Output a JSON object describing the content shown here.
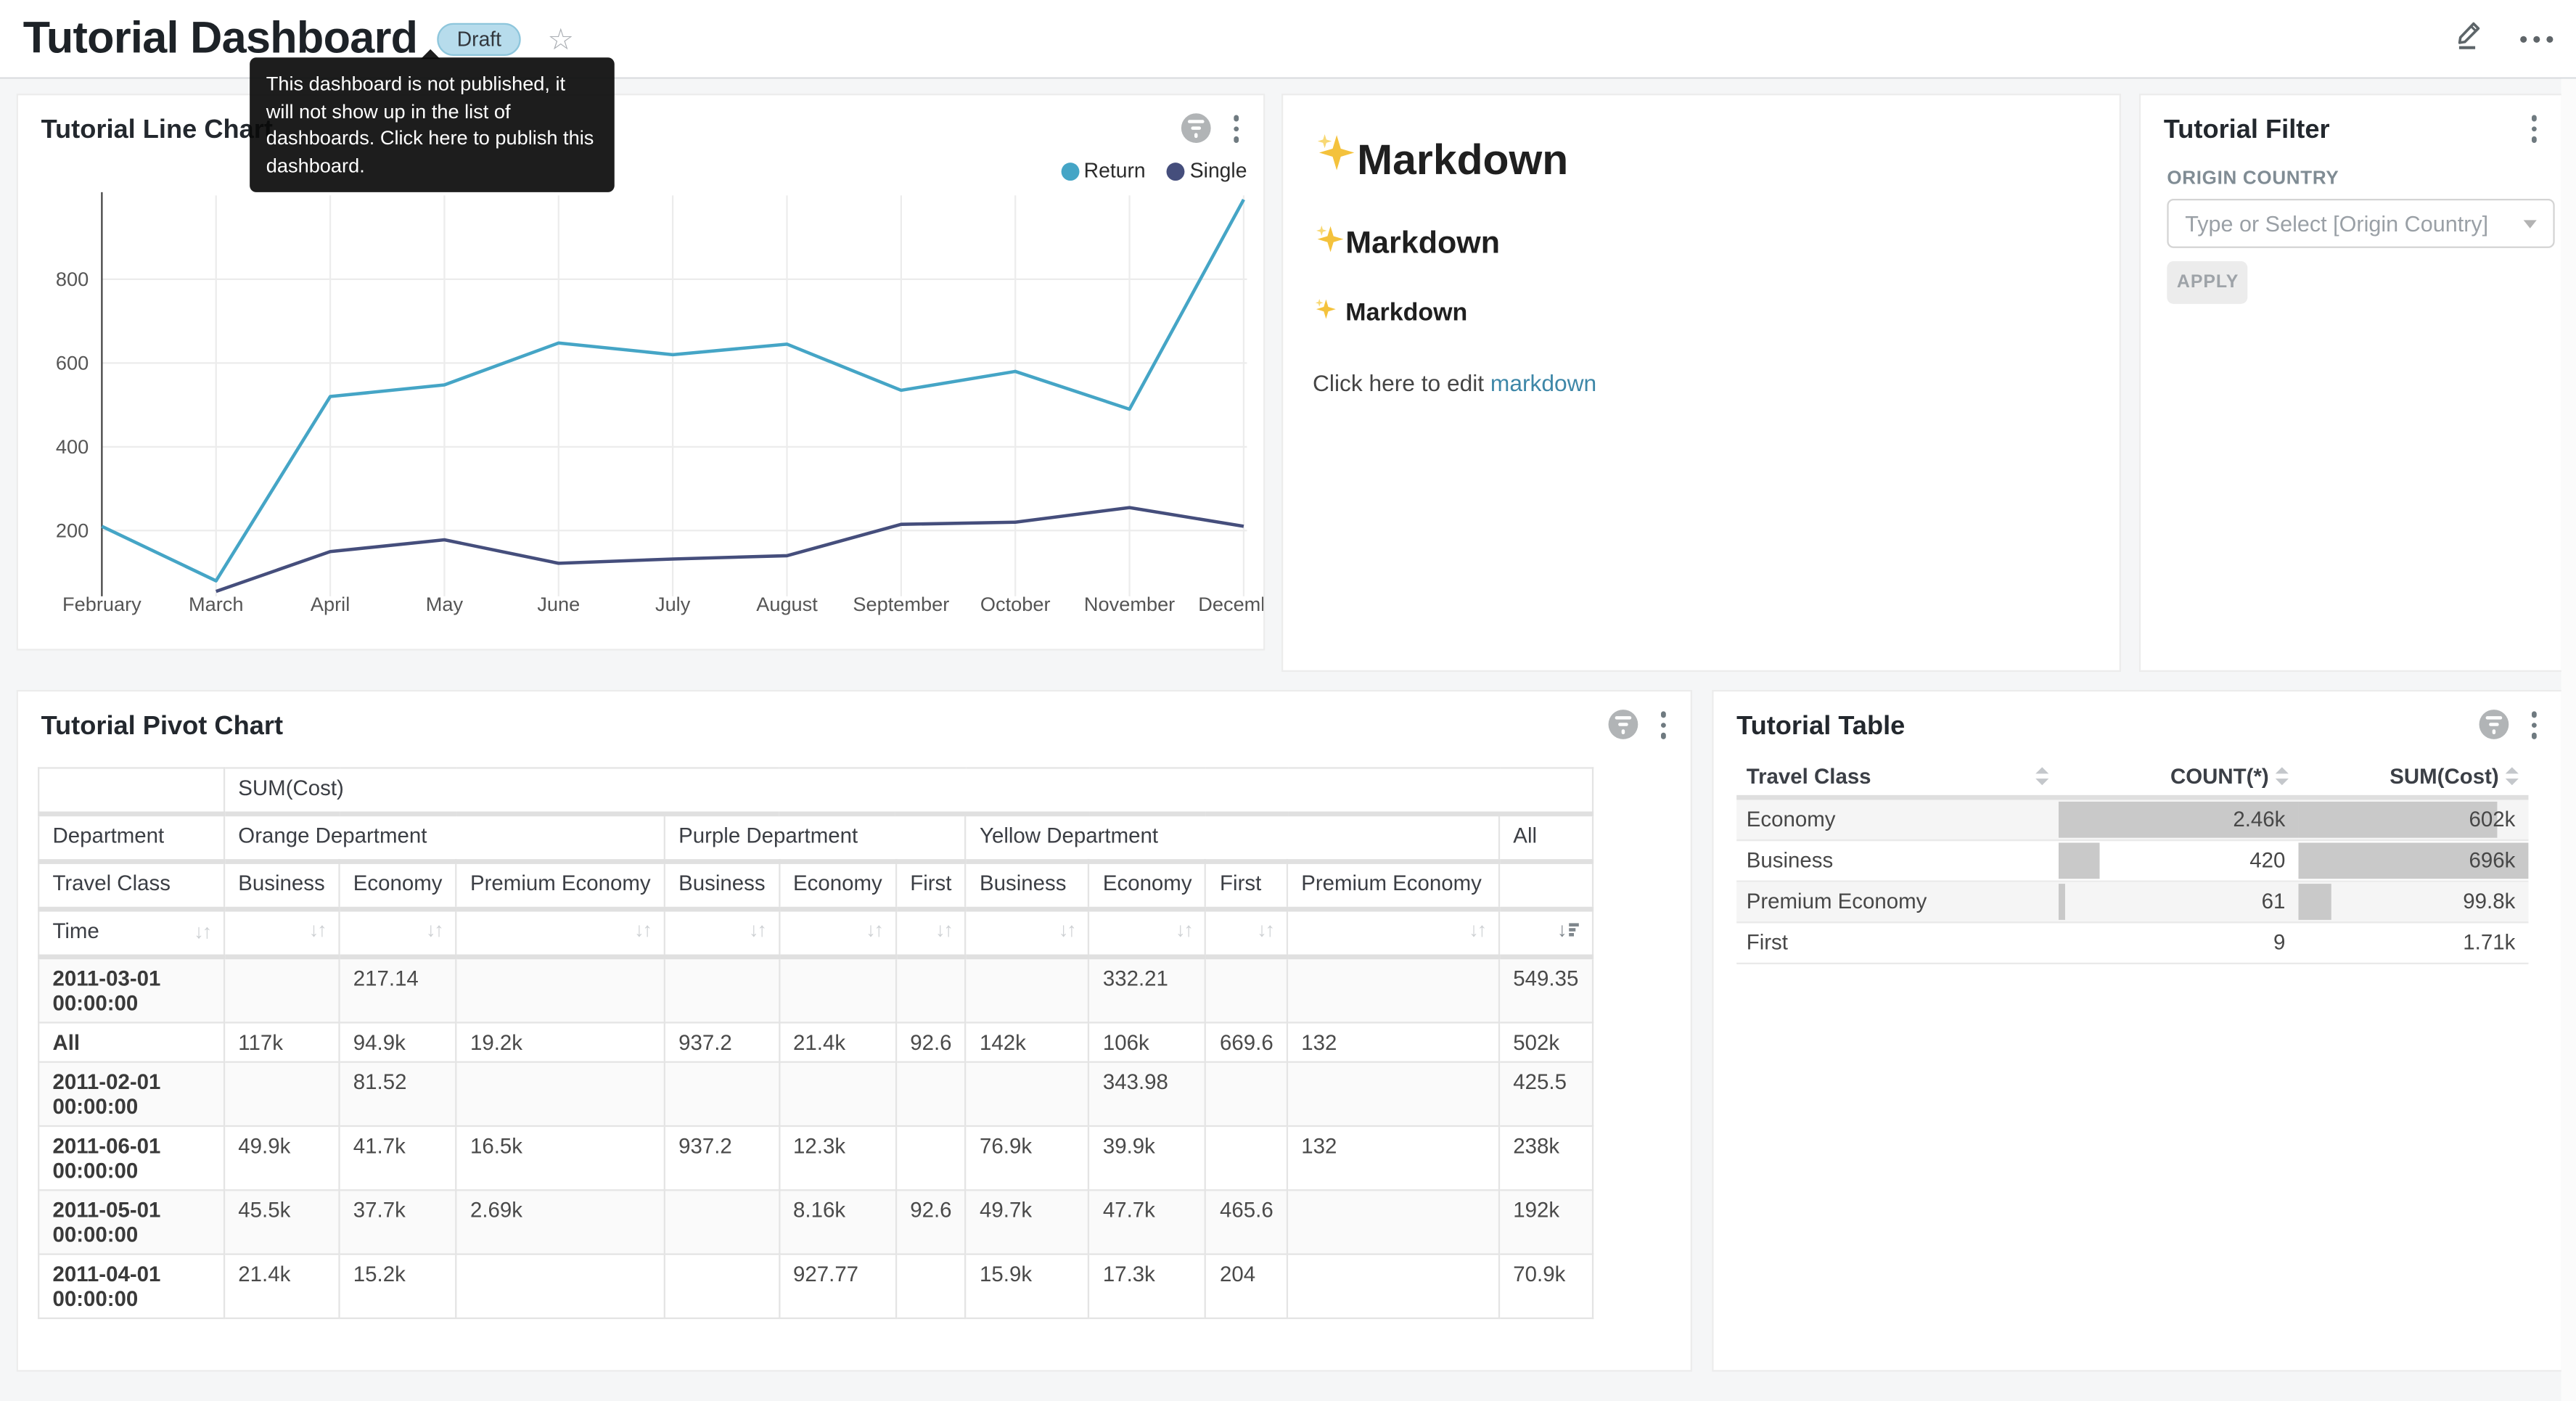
{
  "colors": {
    "return_line": "#45a5c6",
    "single_line": "#454e7c",
    "draft_badge_bg": "#b7dcec",
    "link": "#3e87a8",
    "bar": "#c9c9c9"
  },
  "header": {
    "title": "Tutorial Dashboard",
    "badge": "Draft",
    "tooltip": "This dashboard is not published, it will not show up in the list of dashboards. Click here to publish this dashboard."
  },
  "line_card": {
    "title": "Tutorial Line Chart"
  },
  "chart_data": {
    "type": "line",
    "title": "Tutorial Line Chart",
    "x": [
      "February",
      "March",
      "April",
      "May",
      "June",
      "July",
      "August",
      "September",
      "October",
      "November",
      "December"
    ],
    "series": [
      {
        "name": "Return",
        "color": "#45a5c6",
        "values": [
          210,
          80,
          520,
          548,
          648,
          620,
          645,
          535,
          580,
          490,
          990
        ]
      },
      {
        "name": "Single",
        "color": "#454e7c",
        "values": [
          null,
          55,
          150,
          178,
          122,
          132,
          140,
          215,
          220,
          255,
          210
        ]
      }
    ],
    "yticks": [
      200,
      400,
      600,
      800
    ],
    "ylim": [
      66,
      1000
    ],
    "grid": true,
    "legend_position": "top-right"
  },
  "markdown": {
    "sparkle_emoji": "✨",
    "headings": [
      {
        "level": 1,
        "text": "Markdown"
      },
      {
        "level": 2,
        "text": "Markdown"
      },
      {
        "level": 3,
        "text": "Markdown"
      }
    ],
    "edit_text_prefix": "Click here to edit ",
    "edit_link_text": "markdown"
  },
  "filter_card": {
    "title": "Tutorial Filter",
    "field_label": "ORIGIN COUNTRY",
    "placeholder": "Type or Select [Origin Country]",
    "apply_label": "APPLY"
  },
  "pivot_card": {
    "title": "Tutorial Pivot Chart",
    "metric_header": "SUM(Cost)",
    "dim_row_label": "Department",
    "dim_col_label": "Travel Class",
    "time_label": "Time",
    "groups": [
      {
        "label": "Orange Department",
        "cols": [
          "Business",
          "Economy",
          "Premium Economy"
        ]
      },
      {
        "label": "Purple Department",
        "cols": [
          "Business",
          "Economy",
          "First"
        ]
      },
      {
        "label": "Yellow Department",
        "cols": [
          "Business",
          "Economy",
          "First",
          "Premium Economy"
        ]
      },
      {
        "label": "All",
        "cols": [
          ""
        ]
      }
    ],
    "rows": [
      {
        "label": "2011-03-01 00:00:00",
        "values": [
          "",
          "217.14",
          "",
          "",
          "",
          "",
          "",
          "332.21",
          "",
          "",
          "549.35"
        ]
      },
      {
        "label": "All",
        "values": [
          "117k",
          "94.9k",
          "19.2k",
          "937.2",
          "21.4k",
          "92.6",
          "142k",
          "106k",
          "669.6",
          "132",
          "502k"
        ]
      },
      {
        "label": "2011-02-01 00:00:00",
        "values": [
          "",
          "81.52",
          "",
          "",
          "",
          "",
          "",
          "343.98",
          "",
          "",
          "425.5"
        ]
      },
      {
        "label": "2011-06-01 00:00:00",
        "values": [
          "49.9k",
          "41.7k",
          "16.5k",
          "937.2",
          "12.3k",
          "",
          "76.9k",
          "39.9k",
          "",
          "132",
          "238k"
        ]
      },
      {
        "label": "2011-05-01 00:00:00",
        "values": [
          "45.5k",
          "37.7k",
          "2.69k",
          "",
          "8.16k",
          "92.6",
          "49.7k",
          "47.7k",
          "465.6",
          "",
          "192k"
        ]
      },
      {
        "label": "2011-04-01 00:00:00",
        "values": [
          "21.4k",
          "15.2k",
          "",
          "",
          "927.77",
          "",
          "15.9k",
          "17.3k",
          "204",
          "",
          "70.9k"
        ]
      }
    ]
  },
  "table_card": {
    "title": "Tutorial Table",
    "columns": [
      "Travel Class",
      "COUNT(*)",
      "SUM(Cost)"
    ],
    "rows": [
      {
        "label": "Economy",
        "count": "2.46k",
        "count_bar": 100,
        "sum": "602k",
        "sum_bar": 86.5
      },
      {
        "label": "Business",
        "count": "420",
        "count_bar": 17,
        "sum": "696k",
        "sum_bar": 100
      },
      {
        "label": "Premium Economy",
        "count": "61",
        "count_bar": 2.5,
        "sum": "99.8k",
        "sum_bar": 14.3
      },
      {
        "label": "First",
        "count": "9",
        "count_bar": 0.4,
        "sum": "1.71k",
        "sum_bar": 0.3
      }
    ]
  }
}
